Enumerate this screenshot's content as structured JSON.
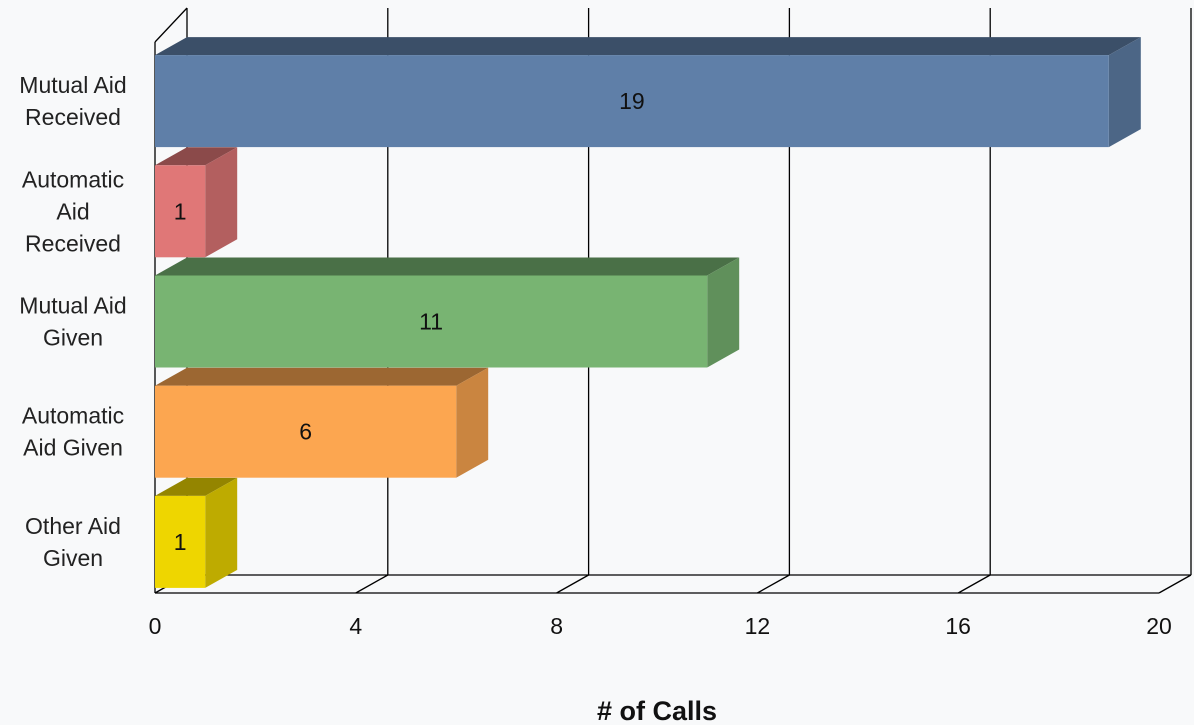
{
  "chart_data": {
    "type": "bar",
    "orientation": "horizontal",
    "categories": [
      [
        "Mutual Aid",
        "Received"
      ],
      [
        "Automatic",
        "Aid",
        "Received"
      ],
      [
        "Mutual Aid",
        "Given"
      ],
      [
        "Automatic",
        "Aid Given"
      ],
      [
        "Other Aid",
        "Given"
      ]
    ],
    "values": [
      19,
      1,
      11,
      6,
      1
    ],
    "data_labels": [
      "19",
      "1",
      "11",
      "6",
      "1"
    ],
    "colors": [
      "#5f7fa8",
      "#e07777",
      "#78b472",
      "#fca650",
      "#eed600"
    ],
    "xlabel": "# of Calls",
    "xlim": [
      0,
      20
    ],
    "xticks": [
      0,
      4,
      8,
      12,
      16,
      20
    ],
    "xtick_labels": [
      "0",
      "4",
      "8",
      "12",
      "16",
      "20"
    ],
    "grid": true,
    "style": "3d"
  }
}
